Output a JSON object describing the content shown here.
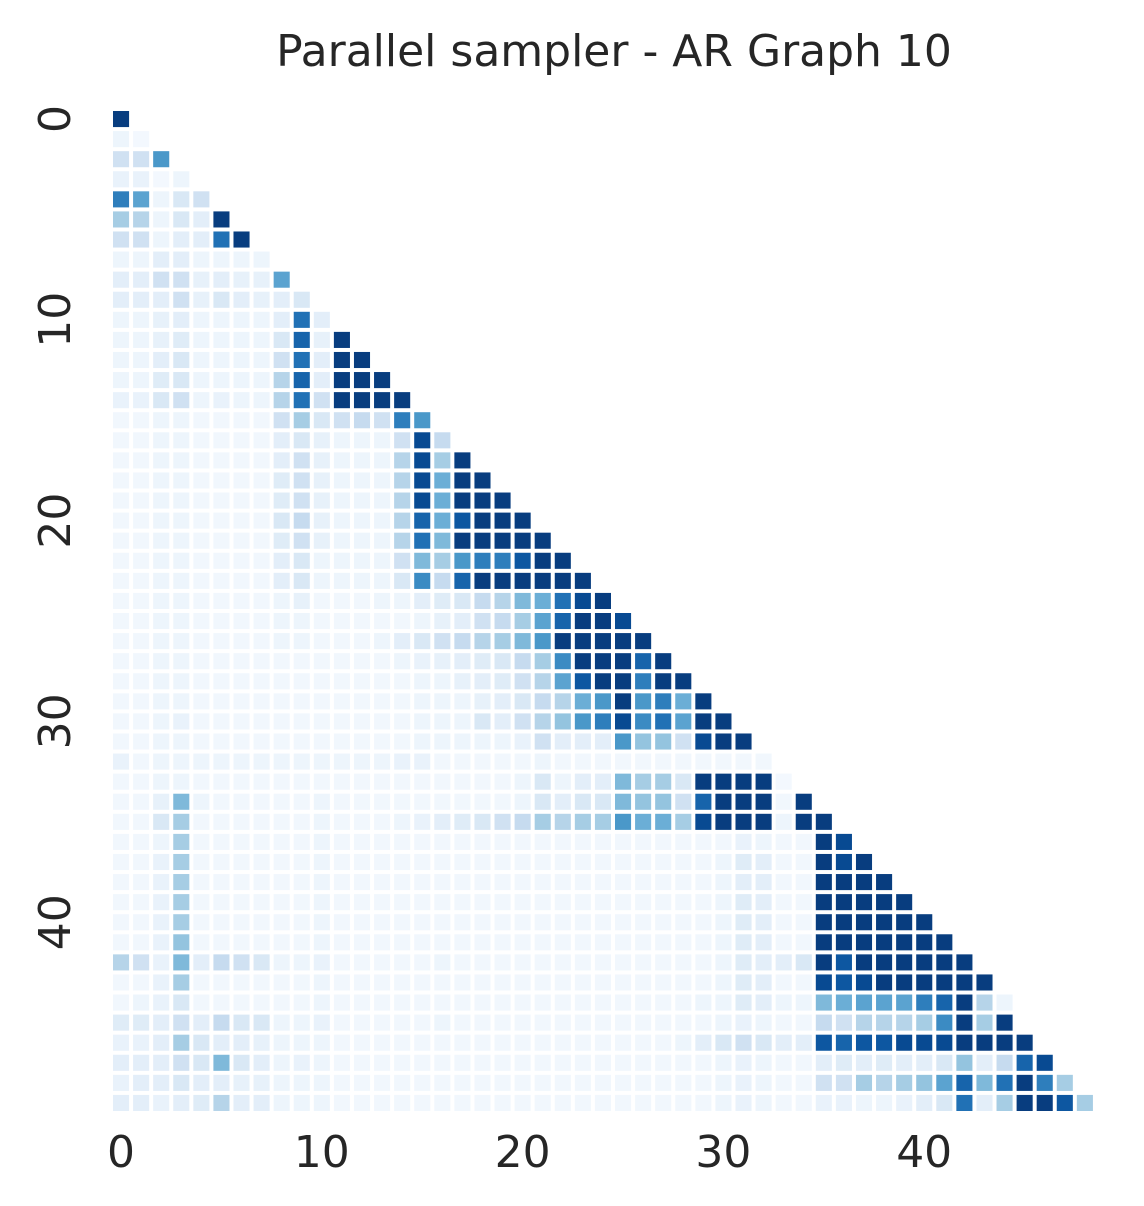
{
  "chart_data": {
    "type": "heatmap",
    "title": "Parallel sampler - AR Graph 10",
    "xlabel": "",
    "ylabel": "",
    "size": 49,
    "mask": "lower-triangle-including-diagonal",
    "colormap": "Blues",
    "colorbar": false,
    "grid": false,
    "x_ticks": [
      0,
      10,
      20,
      30,
      40
    ],
    "y_ticks": [
      0,
      10,
      20,
      30,
      40
    ],
    "value_range": [
      0,
      1
    ],
    "rows": [
      [
        0.95
      ],
      [
        0.05,
        0.02
      ],
      [
        0.2,
        0.2,
        0.6
      ],
      [
        0.07,
        0.07,
        0.02,
        0.05
      ],
      [
        0.7,
        0.55,
        0.05,
        0.15,
        0.2
      ],
      [
        0.35,
        0.3,
        0.05,
        0.15,
        0.1,
        0.95
      ],
      [
        0.2,
        0.2,
        0.05,
        0.1,
        0.1,
        0.75,
        0.95
      ],
      [
        0.05,
        0.05,
        0.1,
        0.1,
        0.05,
        0.05,
        0.05,
        0.05
      ],
      [
        0.1,
        0.1,
        0.2,
        0.2,
        0.08,
        0.1,
        0.08,
        0.08,
        0.55
      ],
      [
        0.1,
        0.1,
        0.1,
        0.2,
        0.08,
        0.15,
        0.1,
        0.08,
        0.1,
        0.15
      ],
      [
        0.05,
        0.05,
        0.08,
        0.1,
        0.05,
        0.05,
        0.05,
        0.05,
        0.1,
        0.75,
        0.1
      ],
      [
        0.05,
        0.05,
        0.08,
        0.12,
        0.05,
        0.05,
        0.05,
        0.05,
        0.15,
        0.8,
        0.08,
        0.95
      ],
      [
        0.05,
        0.05,
        0.1,
        0.15,
        0.05,
        0.05,
        0.05,
        0.05,
        0.2,
        0.75,
        0.1,
        0.95,
        0.95
      ],
      [
        0.05,
        0.05,
        0.12,
        0.15,
        0.05,
        0.05,
        0.05,
        0.05,
        0.3,
        0.8,
        0.1,
        0.95,
        0.95,
        0.95
      ],
      [
        0.07,
        0.07,
        0.15,
        0.2,
        0.05,
        0.07,
        0.05,
        0.05,
        0.3,
        0.75,
        0.2,
        0.95,
        0.95,
        0.95,
        0.95
      ],
      [
        0.03,
        0.03,
        0.05,
        0.05,
        0.03,
        0.03,
        0.03,
        0.03,
        0.2,
        0.35,
        0.15,
        0.2,
        0.25,
        0.2,
        0.7,
        0.6
      ],
      [
        0.03,
        0.03,
        0.05,
        0.05,
        0.03,
        0.03,
        0.03,
        0.03,
        0.1,
        0.15,
        0.08,
        0.05,
        0.05,
        0.05,
        0.2,
        0.9,
        0.25
      ],
      [
        0.03,
        0.03,
        0.05,
        0.05,
        0.03,
        0.03,
        0.03,
        0.03,
        0.1,
        0.2,
        0.08,
        0.05,
        0.05,
        0.05,
        0.3,
        0.9,
        0.35,
        0.95
      ],
      [
        0.03,
        0.03,
        0.05,
        0.05,
        0.03,
        0.03,
        0.03,
        0.03,
        0.12,
        0.2,
        0.08,
        0.05,
        0.05,
        0.05,
        0.3,
        0.9,
        0.5,
        0.95,
        0.95
      ],
      [
        0.03,
        0.03,
        0.05,
        0.05,
        0.03,
        0.03,
        0.03,
        0.03,
        0.12,
        0.2,
        0.08,
        0.05,
        0.05,
        0.05,
        0.3,
        0.9,
        0.5,
        0.95,
        0.95,
        0.95
      ],
      [
        0.03,
        0.03,
        0.05,
        0.05,
        0.03,
        0.03,
        0.03,
        0.03,
        0.15,
        0.25,
        0.08,
        0.05,
        0.05,
        0.05,
        0.3,
        0.8,
        0.5,
        0.85,
        0.95,
        0.95,
        0.95
      ],
      [
        0.03,
        0.03,
        0.05,
        0.05,
        0.03,
        0.03,
        0.03,
        0.03,
        0.12,
        0.2,
        0.08,
        0.05,
        0.05,
        0.05,
        0.3,
        0.75,
        0.45,
        0.95,
        0.95,
        0.95,
        0.95,
        0.95
      ],
      [
        0.03,
        0.03,
        0.05,
        0.05,
        0.03,
        0.03,
        0.03,
        0.03,
        0.1,
        0.15,
        0.05,
        0.05,
        0.05,
        0.05,
        0.2,
        0.45,
        0.35,
        0.6,
        0.7,
        0.7,
        0.85,
        0.95,
        0.95
      ],
      [
        0.03,
        0.03,
        0.05,
        0.05,
        0.03,
        0.03,
        0.03,
        0.03,
        0.1,
        0.15,
        0.05,
        0.05,
        0.05,
        0.05,
        0.15,
        0.65,
        0.25,
        0.8,
        0.95,
        0.95,
        0.95,
        0.95,
        0.95,
        0.95
      ],
      [
        0.03,
        0.03,
        0.05,
        0.05,
        0.03,
        0.03,
        0.03,
        0.03,
        0.05,
        0.08,
        0.03,
        0.03,
        0.03,
        0.05,
        0.05,
        0.1,
        0.12,
        0.15,
        0.25,
        0.3,
        0.45,
        0.5,
        0.75,
        0.9,
        0.95
      ],
      [
        0.03,
        0.03,
        0.05,
        0.05,
        0.03,
        0.03,
        0.03,
        0.03,
        0.05,
        0.05,
        0.03,
        0.03,
        0.03,
        0.03,
        0.03,
        0.05,
        0.08,
        0.1,
        0.2,
        0.25,
        0.35,
        0.55,
        0.8,
        0.95,
        0.95,
        0.9
      ],
      [
        0.03,
        0.03,
        0.05,
        0.05,
        0.03,
        0.03,
        0.03,
        0.03,
        0.05,
        0.05,
        0.03,
        0.03,
        0.03,
        0.05,
        0.1,
        0.15,
        0.2,
        0.25,
        0.3,
        0.35,
        0.45,
        0.6,
        0.95,
        0.95,
        0.95,
        0.95,
        0.95
      ],
      [
        0.03,
        0.03,
        0.05,
        0.05,
        0.03,
        0.03,
        0.03,
        0.03,
        0.03,
        0.03,
        0.03,
        0.03,
        0.03,
        0.03,
        0.05,
        0.07,
        0.08,
        0.1,
        0.12,
        0.15,
        0.25,
        0.35,
        0.65,
        0.95,
        0.95,
        0.95,
        0.8,
        0.95
      ],
      [
        0.03,
        0.03,
        0.05,
        0.05,
        0.03,
        0.03,
        0.03,
        0.03,
        0.03,
        0.03,
        0.03,
        0.03,
        0.03,
        0.03,
        0.03,
        0.05,
        0.05,
        0.08,
        0.1,
        0.12,
        0.2,
        0.3,
        0.55,
        0.85,
        0.95,
        0.95,
        0.7,
        0.95,
        0.95
      ],
      [
        0.03,
        0.03,
        0.05,
        0.05,
        0.03,
        0.03,
        0.03,
        0.03,
        0.03,
        0.03,
        0.03,
        0.03,
        0.03,
        0.03,
        0.03,
        0.05,
        0.05,
        0.05,
        0.08,
        0.1,
        0.15,
        0.25,
        0.3,
        0.5,
        0.6,
        0.95,
        0.6,
        0.7,
        0.5,
        0.95
      ],
      [
        0.03,
        0.03,
        0.05,
        0.07,
        0.03,
        0.03,
        0.03,
        0.03,
        0.03,
        0.03,
        0.03,
        0.03,
        0.03,
        0.03,
        0.03,
        0.05,
        0.05,
        0.05,
        0.15,
        0.1,
        0.2,
        0.3,
        0.4,
        0.6,
        0.7,
        0.9,
        0.65,
        0.75,
        0.55,
        0.95,
        0.95
      ],
      [
        0.03,
        0.03,
        0.05,
        0.05,
        0.03,
        0.03,
        0.03,
        0.03,
        0.03,
        0.03,
        0.03,
        0.03,
        0.03,
        0.03,
        0.03,
        0.05,
        0.05,
        0.05,
        0.05,
        0.05,
        0.07,
        0.2,
        0.1,
        0.1,
        0.1,
        0.6,
        0.4,
        0.4,
        0.2,
        0.9,
        0.95,
        0.95
      ],
      [
        0.07,
        0.03,
        0.05,
        0.05,
        0.05,
        0.05,
        0.05,
        0.05,
        0.05,
        0.05,
        0.05,
        0.05,
        0.05,
        0.05,
        0.07,
        0.07,
        0.03,
        0.03,
        0.03,
        0.03,
        0.03,
        0.05,
        0.03,
        0.03,
        0.03,
        0.03,
        0.03,
        0.03,
        0.03,
        0.03,
        0.03,
        0.03,
        0.03
      ],
      [
        0.03,
        0.03,
        0.05,
        0.05,
        0.03,
        0.03,
        0.03,
        0.03,
        0.03,
        0.03,
        0.03,
        0.03,
        0.03,
        0.03,
        0.03,
        0.03,
        0.03,
        0.03,
        0.03,
        0.03,
        0.05,
        0.15,
        0.05,
        0.1,
        0.1,
        0.45,
        0.35,
        0.35,
        0.15,
        0.95,
        0.95,
        0.95,
        0.95,
        0.02
      ],
      [
        0.03,
        0.03,
        0.08,
        0.45,
        0.05,
        0.03,
        0.03,
        0.03,
        0.03,
        0.03,
        0.05,
        0.03,
        0.03,
        0.03,
        0.03,
        0.03,
        0.03,
        0.03,
        0.03,
        0.03,
        0.05,
        0.15,
        0.1,
        0.15,
        0.15,
        0.45,
        0.4,
        0.4,
        0.2,
        0.8,
        0.95,
        0.95,
        0.95,
        0.03,
        0.95
      ],
      [
        0.03,
        0.03,
        0.15,
        0.35,
        0.03,
        0.03,
        0.03,
        0.03,
        0.03,
        0.03,
        0.05,
        0.03,
        0.03,
        0.03,
        0.05,
        0.07,
        0.1,
        0.12,
        0.15,
        0.2,
        0.25,
        0.35,
        0.3,
        0.35,
        0.35,
        0.6,
        0.5,
        0.5,
        0.35,
        0.9,
        0.95,
        0.95,
        0.95,
        0.05,
        0.95,
        0.95
      ],
      [
        0.03,
        0.03,
        0.05,
        0.35,
        0.03,
        0.03,
        0.03,
        0.03,
        0.03,
        0.03,
        0.05,
        0.03,
        0.03,
        0.03,
        0.03,
        0.03,
        0.03,
        0.03,
        0.03,
        0.03,
        0.03,
        0.03,
        0.03,
        0.03,
        0.03,
        0.03,
        0.03,
        0.03,
        0.03,
        0.03,
        0.03,
        0.07,
        0.05,
        0.03,
        0.03,
        0.95,
        0.9
      ],
      [
        0.03,
        0.03,
        0.07,
        0.35,
        0.03,
        0.03,
        0.03,
        0.03,
        0.03,
        0.03,
        0.05,
        0.03,
        0.03,
        0.03,
        0.03,
        0.03,
        0.03,
        0.03,
        0.03,
        0.03,
        0.03,
        0.03,
        0.03,
        0.03,
        0.03,
        0.03,
        0.03,
        0.03,
        0.03,
        0.03,
        0.05,
        0.12,
        0.1,
        0.03,
        0.03,
        0.95,
        0.9,
        0.95
      ],
      [
        0.03,
        0.03,
        0.07,
        0.35,
        0.03,
        0.03,
        0.03,
        0.03,
        0.03,
        0.03,
        0.05,
        0.03,
        0.03,
        0.03,
        0.03,
        0.03,
        0.03,
        0.03,
        0.03,
        0.03,
        0.03,
        0.03,
        0.03,
        0.03,
        0.03,
        0.03,
        0.03,
        0.03,
        0.03,
        0.03,
        0.05,
        0.1,
        0.1,
        0.03,
        0.03,
        0.95,
        0.95,
        0.95,
        0.95
      ],
      [
        0.03,
        0.03,
        0.07,
        0.35,
        0.03,
        0.03,
        0.03,
        0.03,
        0.03,
        0.03,
        0.05,
        0.03,
        0.03,
        0.03,
        0.03,
        0.03,
        0.03,
        0.03,
        0.03,
        0.03,
        0.03,
        0.03,
        0.03,
        0.03,
        0.03,
        0.03,
        0.03,
        0.03,
        0.03,
        0.03,
        0.05,
        0.12,
        0.1,
        0.03,
        0.03,
        0.95,
        0.95,
        0.95,
        0.95,
        0.95
      ],
      [
        0.03,
        0.03,
        0.07,
        0.35,
        0.03,
        0.03,
        0.03,
        0.03,
        0.03,
        0.03,
        0.05,
        0.03,
        0.03,
        0.03,
        0.03,
        0.03,
        0.03,
        0.03,
        0.03,
        0.03,
        0.03,
        0.03,
        0.03,
        0.03,
        0.03,
        0.03,
        0.03,
        0.03,
        0.03,
        0.03,
        0.05,
        0.12,
        0.1,
        0.03,
        0.03,
        0.95,
        0.95,
        0.95,
        0.95,
        0.95,
        0.95
      ],
      [
        0.03,
        0.03,
        0.07,
        0.4,
        0.03,
        0.03,
        0.03,
        0.03,
        0.03,
        0.03,
        0.05,
        0.03,
        0.03,
        0.03,
        0.03,
        0.03,
        0.03,
        0.03,
        0.03,
        0.03,
        0.03,
        0.03,
        0.03,
        0.03,
        0.03,
        0.03,
        0.03,
        0.03,
        0.03,
        0.03,
        0.05,
        0.12,
        0.1,
        0.03,
        0.03,
        0.95,
        0.95,
        0.95,
        0.95,
        0.95,
        0.95,
        0.95
      ],
      [
        0.3,
        0.2,
        0.07,
        0.45,
        0.1,
        0.25,
        0.2,
        0.15,
        0.05,
        0.05,
        0.07,
        0.03,
        0.03,
        0.03,
        0.03,
        0.03,
        0.05,
        0.03,
        0.03,
        0.03,
        0.03,
        0.03,
        0.03,
        0.03,
        0.03,
        0.03,
        0.03,
        0.03,
        0.03,
        0.03,
        0.05,
        0.12,
        0.1,
        0.1,
        0.15,
        0.95,
        0.85,
        0.95,
        0.95,
        0.95,
        0.95,
        0.95,
        0.95
      ],
      [
        0.03,
        0.03,
        0.07,
        0.35,
        0.03,
        0.03,
        0.03,
        0.03,
        0.03,
        0.03,
        0.05,
        0.03,
        0.03,
        0.03,
        0.03,
        0.03,
        0.03,
        0.03,
        0.03,
        0.03,
        0.03,
        0.03,
        0.03,
        0.03,
        0.03,
        0.03,
        0.03,
        0.03,
        0.03,
        0.03,
        0.05,
        0.12,
        0.1,
        0.03,
        0.03,
        0.9,
        0.85,
        0.9,
        0.95,
        0.95,
        0.95,
        0.95,
        0.95,
        0.95
      ],
      [
        0.03,
        0.05,
        0.07,
        0.15,
        0.03,
        0.03,
        0.03,
        0.03,
        0.03,
        0.03,
        0.05,
        0.03,
        0.03,
        0.03,
        0.03,
        0.03,
        0.03,
        0.03,
        0.03,
        0.03,
        0.03,
        0.03,
        0.03,
        0.03,
        0.03,
        0.03,
        0.03,
        0.03,
        0.03,
        0.05,
        0.05,
        0.12,
        0.1,
        0.05,
        0.05,
        0.45,
        0.5,
        0.55,
        0.55,
        0.55,
        0.7,
        0.8,
        0.95,
        0.3,
        0.05
      ],
      [
        0.12,
        0.12,
        0.1,
        0.2,
        0.1,
        0.25,
        0.15,
        0.15,
        0.05,
        0.05,
        0.07,
        0.03,
        0.03,
        0.03,
        0.03,
        0.03,
        0.05,
        0.03,
        0.03,
        0.03,
        0.03,
        0.03,
        0.03,
        0.03,
        0.03,
        0.03,
        0.03,
        0.03,
        0.03,
        0.03,
        0.05,
        0.07,
        0.05,
        0.03,
        0.03,
        0.25,
        0.2,
        0.3,
        0.3,
        0.3,
        0.35,
        0.65,
        0.95,
        0.35,
        0.95
      ],
      [
        0.07,
        0.07,
        0.1,
        0.35,
        0.15,
        0.1,
        0.1,
        0.08,
        0.05,
        0.05,
        0.05,
        0.03,
        0.03,
        0.03,
        0.03,
        0.03,
        0.03,
        0.03,
        0.03,
        0.03,
        0.03,
        0.03,
        0.03,
        0.03,
        0.03,
        0.03,
        0.03,
        0.03,
        0.05,
        0.1,
        0.15,
        0.2,
        0.15,
        0.1,
        0.1,
        0.85,
        0.8,
        0.85,
        0.85,
        0.9,
        0.9,
        0.9,
        0.95,
        0.95,
        0.95,
        0.95
      ],
      [
        0.1,
        0.1,
        0.1,
        0.2,
        0.15,
        0.45,
        0.15,
        0.1,
        0.05,
        0.07,
        0.05,
        0.03,
        0.03,
        0.03,
        0.03,
        0.03,
        0.03,
        0.03,
        0.03,
        0.03,
        0.03,
        0.03,
        0.03,
        0.03,
        0.03,
        0.03,
        0.03,
        0.03,
        0.03,
        0.03,
        0.05,
        0.07,
        0.05,
        0.03,
        0.03,
        0.1,
        0.12,
        0.1,
        0.12,
        0.1,
        0.1,
        0.15,
        0.4,
        0.1,
        0.25,
        0.8,
        0.9
      ],
      [
        0.07,
        0.1,
        0.1,
        0.15,
        0.1,
        0.1,
        0.08,
        0.08,
        0.05,
        0.05,
        0.05,
        0.03,
        0.03,
        0.03,
        0.03,
        0.03,
        0.03,
        0.03,
        0.03,
        0.03,
        0.03,
        0.03,
        0.03,
        0.03,
        0.03,
        0.03,
        0.03,
        0.03,
        0.03,
        0.03,
        0.05,
        0.07,
        0.05,
        0.03,
        0.03,
        0.2,
        0.2,
        0.35,
        0.3,
        0.35,
        0.4,
        0.55,
        0.8,
        0.45,
        0.75,
        0.95,
        0.7,
        0.35
      ],
      [
        0.1,
        0.1,
        0.07,
        0.1,
        0.12,
        0.3,
        0.1,
        0.1,
        0.05,
        0.05,
        0.05,
        0.03,
        0.03,
        0.03,
        0.03,
        0.03,
        0.03,
        0.03,
        0.03,
        0.03,
        0.03,
        0.03,
        0.03,
        0.03,
        0.03,
        0.03,
        0.03,
        0.03,
        0.03,
        0.03,
        0.05,
        0.07,
        0.05,
        0.03,
        0.03,
        0.07,
        0.07,
        0.05,
        0.05,
        0.07,
        0.1,
        0.15,
        0.75,
        0.1,
        0.35,
        0.95,
        0.95,
        0.85,
        0.35
      ]
    ]
  }
}
